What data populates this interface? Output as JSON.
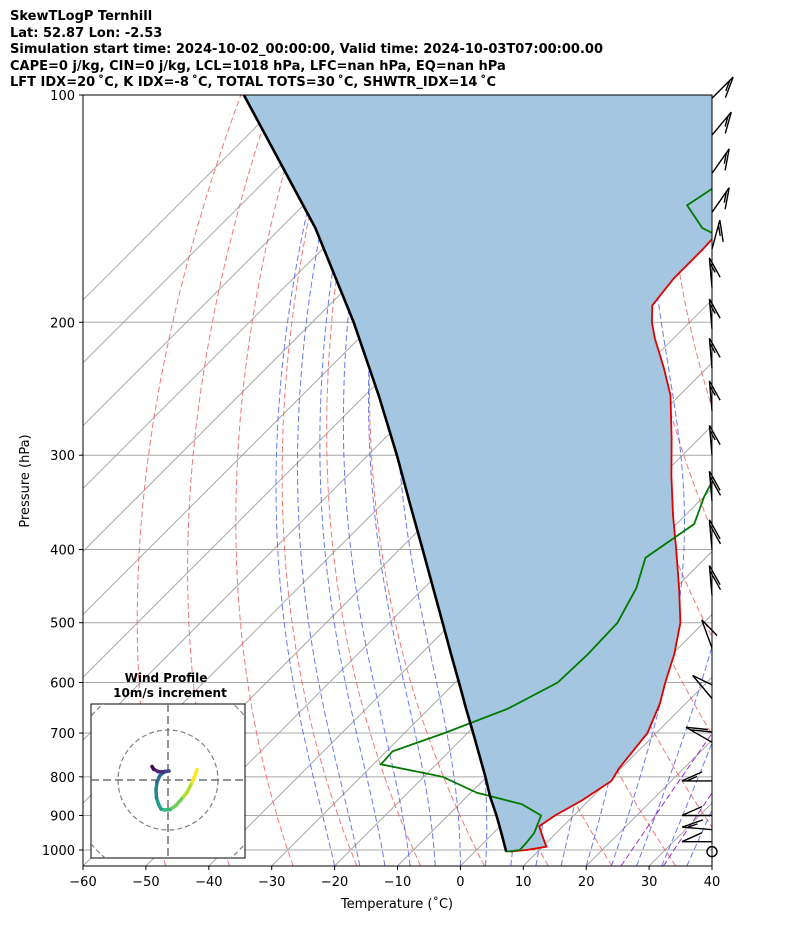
{
  "header": {
    "title": "SkewTLogP Ternhill",
    "location": "Lat: 52.87   Lon: -2.53",
    "times": "Simulation start time: 2024-10-02_00:00:00, Valid time: 2024-10-03T07:00:00.00",
    "indices1": "CAPE=0 j/kg, CIN=0 j/kg, LCL=1018 hPa, LFC=nan hPa, EQ=nan hPa",
    "indices2": "LFT IDX=20 ˚C, K IDX=-8 ˚C, TOTAL TOTS=30 ˚C, SHWTR_IDX=14 ˚C"
  },
  "chart_data": {
    "type": "line",
    "title": "SkewTLogP Ternhill",
    "xlabel": "Temperature (˚C)",
    "ylabel": "Pressure (hPa)",
    "xlim": [
      -60,
      40
    ],
    "ylim": [
      1050,
      100
    ],
    "skew_deg": 45,
    "x_ticks": [
      -60,
      -50,
      -40,
      -30,
      -20,
      -10,
      0,
      10,
      20,
      30,
      40
    ],
    "y_ticks": [
      1000,
      900,
      800,
      700,
      600,
      500,
      400,
      300,
      200,
      100
    ],
    "colors": {
      "temperature": "#e00000",
      "dewpoint": "#007a00",
      "parcel": "#000000",
      "fill": "#a4c6e0",
      "isotherm": "#a8a8a8",
      "dry_adiabat": "#f06060",
      "moist_adiabat": "#5060f0",
      "mixing_ratio": "#a030c8"
    },
    "series": [
      {
        "name": "Temperature",
        "p": [
          1005,
          1000,
          990,
          960,
          930,
          900,
          860,
          810,
          780,
          700,
          640,
          600,
          550,
          500,
          450,
          400,
          360,
          320,
          285,
          250,
          230,
          210,
          200,
          190,
          175,
          160,
          145,
          130,
          115,
          100
        ],
        "t": [
          5.5,
          8.0,
          10.6,
          8.4,
          6.2,
          7.0,
          8.9,
          10.5,
          9.7,
          8.6,
          5.9,
          3.4,
          0.3,
          -3.7,
          -9.4,
          -16.0,
          -22.0,
          -28.4,
          -34.4,
          -41.4,
          -46.8,
          -53.0,
          -56.0,
          -58.6,
          -59.5,
          -59.5,
          -60.0,
          -62.0,
          -64.5,
          -67.5
        ]
      },
      {
        "name": "Dewpoint",
        "p": [
          1005,
          1000,
          980,
          950,
          900,
          870,
          840,
          800,
          770,
          740,
          700,
          650,
          600,
          550,
          500,
          450,
          410,
          370,
          340,
          300,
          270,
          240,
          210,
          190,
          175,
          160,
          150,
          140,
          130,
          115,
          100
        ],
        "t": [
          5.0,
          6.9,
          6.8,
          6.5,
          4.8,
          0.0,
          -9.0,
          -17.0,
          -28.8,
          -29.0,
          -23.7,
          -17.5,
          -13.7,
          -13.4,
          -13.7,
          -16.2,
          -19.6,
          -17.2,
          -20.0,
          -23.1,
          -24.2,
          -26.7,
          -34.5,
          -40.5,
          -43.0,
          -53.0,
          -63.0,
          -69.0,
          -67.0,
          -70.0,
          -73.0
        ]
      },
      {
        "name": "Parcel",
        "p": [
          1005,
          950,
          900,
          850,
          800,
          750,
          700,
          650,
          600,
          550,
          500,
          450,
          400,
          350,
          300,
          250,
          200,
          150,
          100
        ],
        "t": [
          5.0,
          1.3,
          -2.3,
          -6.3,
          -10.2,
          -14.5,
          -19.1,
          -24.1,
          -29.4,
          -35.2,
          -41.5,
          -48.5,
          -56.3,
          -65.2,
          -75.4,
          -87.8,
          -103.4,
          -124.5,
          -157.0
        ]
      }
    ]
  },
  "hodograph": {
    "title": "Wind Profile",
    "subtitle": "10m/s increment",
    "points": [
      [
        5.8,
        2.1
      ],
      [
        5.3,
        0.6
      ],
      [
        4.6,
        -0.9
      ],
      [
        3.8,
        -2.5
      ],
      [
        2.7,
        -3.8
      ],
      [
        1.6,
        -5.1
      ],
      [
        0.4,
        -5.9
      ],
      [
        -0.7,
        -6.0
      ],
      [
        -1.4,
        -5.8
      ],
      [
        -1.9,
        -4.8
      ],
      [
        -2.3,
        -3.6
      ],
      [
        -2.4,
        -2.0
      ],
      [
        -2.2,
        -0.4
      ],
      [
        -1.6,
        0.9
      ],
      [
        -0.7,
        1.7
      ],
      [
        0.2,
        1.8
      ],
      [
        -0.9,
        1.6
      ],
      [
        -2.0,
        1.7
      ],
      [
        -2.9,
        2.2
      ],
      [
        -3.2,
        2.7
      ]
    ]
  },
  "wind_barbs": [
    {
      "p": 1005,
      "speed_kt": 0,
      "dir_deg": 0
    },
    {
      "p": 975,
      "speed_kt": 10,
      "dir_deg": 270
    },
    {
      "p": 940,
      "speed_kt": 15,
      "dir_deg": 275
    },
    {
      "p": 900,
      "speed_kt": 10,
      "dir_deg": 270
    },
    {
      "p": 810,
      "speed_kt": 15,
      "dir_deg": 270
    },
    {
      "p": 720,
      "speed_kt": 20,
      "dir_deg": 300
    },
    {
      "p": 630,
      "speed_kt": 10,
      "dir_deg": 320
    },
    {
      "p": 540,
      "speed_kt": 10,
      "dir_deg": 340
    },
    {
      "p": 460,
      "speed_kt": 20,
      "dir_deg": 355
    },
    {
      "p": 400,
      "speed_kt": 20,
      "dir_deg": 355
    },
    {
      "p": 345,
      "speed_kt": 20,
      "dir_deg": 355
    },
    {
      "p": 300,
      "speed_kt": 15,
      "dir_deg": 355
    },
    {
      "p": 262,
      "speed_kt": 15,
      "dir_deg": 355
    },
    {
      "p": 230,
      "speed_kt": 15,
      "dir_deg": 355
    },
    {
      "p": 204,
      "speed_kt": 15,
      "dir_deg": 355
    },
    {
      "p": 180,
      "speed_kt": 15,
      "dir_deg": 355
    },
    {
      "p": 160,
      "speed_kt": 15,
      "dir_deg": 15
    },
    {
      "p": 143,
      "speed_kt": 15,
      "dir_deg": 35
    },
    {
      "p": 127,
      "speed_kt": 15,
      "dir_deg": 35
    },
    {
      "p": 113,
      "speed_kt": 15,
      "dir_deg": 40
    },
    {
      "p": 101,
      "speed_kt": 15,
      "dir_deg": 45
    }
  ]
}
